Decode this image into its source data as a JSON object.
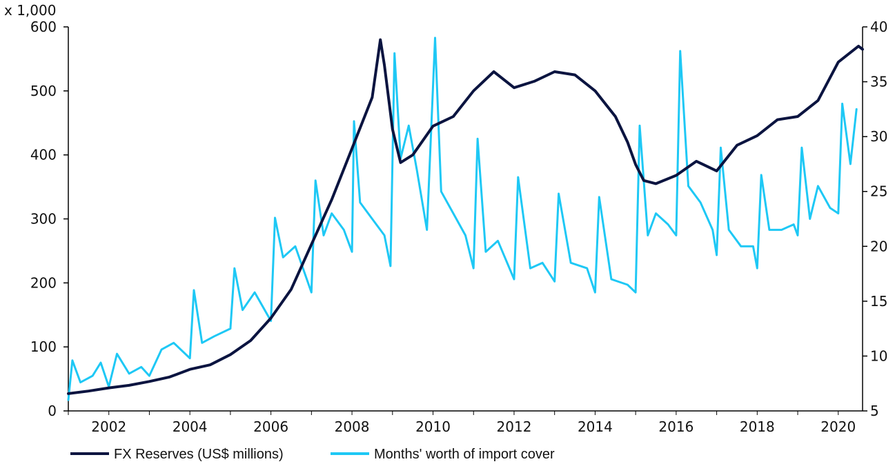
{
  "chart_data": {
    "type": "line",
    "multiplier_label": "x 1,000",
    "legend_placement": "bottom",
    "grid": false,
    "x_ticks": [
      "2002",
      "2004",
      "2006",
      "2008",
      "2010",
      "2012",
      "2014",
      "2016",
      "2018",
      "2020"
    ],
    "y_left": {
      "lim": [
        0,
        600
      ],
      "ticks": [
        "0",
        "100",
        "200",
        "300",
        "400",
        "500",
        "600"
      ]
    },
    "y_right": {
      "lim": [
        5,
        40
      ],
      "ticks": [
        "5",
        "10",
        "15",
        "20",
        "25",
        "30",
        "35",
        "40"
      ]
    },
    "series": [
      {
        "name": "FX Reserves (US$ millions)",
        "axis": "left",
        "color": "#0b1440",
        "points": [
          [
            2001.0,
            27
          ],
          [
            2001.5,
            31
          ],
          [
            2002.0,
            36
          ],
          [
            2002.5,
            40
          ],
          [
            2003.0,
            46
          ],
          [
            2003.5,
            53
          ],
          [
            2004.0,
            65
          ],
          [
            2004.5,
            72
          ],
          [
            2005.0,
            88
          ],
          [
            2005.5,
            110
          ],
          [
            2006.0,
            145
          ],
          [
            2006.5,
            190
          ],
          [
            2007.0,
            260
          ],
          [
            2007.5,
            330
          ],
          [
            2008.0,
            410
          ],
          [
            2008.5,
            490
          ],
          [
            2008.7,
            580
          ],
          [
            2008.8,
            540
          ],
          [
            2009.0,
            440
          ],
          [
            2009.2,
            388
          ],
          [
            2009.5,
            400
          ],
          [
            2010.0,
            445
          ],
          [
            2010.5,
            460
          ],
          [
            2011.0,
            500
          ],
          [
            2011.5,
            530
          ],
          [
            2012.0,
            505
          ],
          [
            2012.5,
            515
          ],
          [
            2013.0,
            530
          ],
          [
            2013.5,
            525
          ],
          [
            2014.0,
            500
          ],
          [
            2014.5,
            460
          ],
          [
            2014.8,
            420
          ],
          [
            2015.0,
            385
          ],
          [
            2015.2,
            360
          ],
          [
            2015.5,
            355
          ],
          [
            2016.0,
            368
          ],
          [
            2016.5,
            390
          ],
          [
            2017.0,
            375
          ],
          [
            2017.5,
            415
          ],
          [
            2018.0,
            430
          ],
          [
            2018.5,
            455
          ],
          [
            2019.0,
            460
          ],
          [
            2019.5,
            485
          ],
          [
            2020.0,
            545
          ],
          [
            2020.5,
            570
          ],
          [
            2020.6,
            565
          ]
        ]
      },
      {
        "name": "Months' worth of import cover",
        "axis": "right",
        "color": "#1ec8f5",
        "points": [
          [
            2001.0,
            6.0
          ],
          [
            2001.1,
            9.6
          ],
          [
            2001.3,
            7.6
          ],
          [
            2001.6,
            8.2
          ],
          [
            2001.8,
            9.4
          ],
          [
            2002.0,
            7.2
          ],
          [
            2002.2,
            10.2
          ],
          [
            2002.5,
            8.4
          ],
          [
            2002.8,
            9.0
          ],
          [
            2003.0,
            8.2
          ],
          [
            2003.3,
            10.6
          ],
          [
            2003.6,
            11.2
          ],
          [
            2004.0,
            9.8
          ],
          [
            2004.1,
            16.0
          ],
          [
            2004.3,
            11.2
          ],
          [
            2004.6,
            11.8
          ],
          [
            2005.0,
            12.5
          ],
          [
            2005.1,
            18.0
          ],
          [
            2005.3,
            14.2
          ],
          [
            2005.6,
            15.8
          ],
          [
            2006.0,
            13.2
          ],
          [
            2006.1,
            22.6
          ],
          [
            2006.3,
            19.0
          ],
          [
            2006.6,
            20.0
          ],
          [
            2007.0,
            15.8
          ],
          [
            2007.1,
            26.0
          ],
          [
            2007.3,
            21.0
          ],
          [
            2007.5,
            23.0
          ],
          [
            2007.8,
            21.5
          ],
          [
            2008.0,
            19.5
          ],
          [
            2008.05,
            31.4
          ],
          [
            2008.2,
            24.0
          ],
          [
            2008.5,
            22.5
          ],
          [
            2008.8,
            21.0
          ],
          [
            2008.95,
            18.2
          ],
          [
            2009.05,
            37.6
          ],
          [
            2009.2,
            28.0
          ],
          [
            2009.4,
            31.0
          ],
          [
            2009.6,
            27.0
          ],
          [
            2009.85,
            21.5
          ],
          [
            2010.05,
            39.0
          ],
          [
            2010.2,
            25.0
          ],
          [
            2010.5,
            23.0
          ],
          [
            2010.8,
            21.0
          ],
          [
            2011.0,
            18.0
          ],
          [
            2011.1,
            29.8
          ],
          [
            2011.3,
            19.5
          ],
          [
            2011.6,
            20.5
          ],
          [
            2012.0,
            17.0
          ],
          [
            2012.1,
            26.3
          ],
          [
            2012.4,
            18.0
          ],
          [
            2012.7,
            18.5
          ],
          [
            2013.0,
            16.8
          ],
          [
            2013.1,
            24.8
          ],
          [
            2013.4,
            18.5
          ],
          [
            2013.8,
            18.0
          ],
          [
            2014.0,
            15.8
          ],
          [
            2014.1,
            24.5
          ],
          [
            2014.4,
            17.0
          ],
          [
            2014.8,
            16.5
          ],
          [
            2015.0,
            15.8
          ],
          [
            2015.1,
            31.0
          ],
          [
            2015.3,
            21.0
          ],
          [
            2015.5,
            23.0
          ],
          [
            2015.8,
            22.0
          ],
          [
            2016.0,
            21.0
          ],
          [
            2016.1,
            37.8
          ],
          [
            2016.3,
            25.5
          ],
          [
            2016.6,
            24.0
          ],
          [
            2016.9,
            21.5
          ],
          [
            2017.0,
            19.2
          ],
          [
            2017.1,
            29.0
          ],
          [
            2017.3,
            21.5
          ],
          [
            2017.6,
            20.0
          ],
          [
            2017.9,
            20.0
          ],
          [
            2018.0,
            18.0
          ],
          [
            2018.1,
            26.5
          ],
          [
            2018.3,
            21.5
          ],
          [
            2018.6,
            21.5
          ],
          [
            2018.9,
            22.0
          ],
          [
            2019.0,
            21.0
          ],
          [
            2019.1,
            29.0
          ],
          [
            2019.3,
            22.5
          ],
          [
            2019.5,
            25.5
          ],
          [
            2019.8,
            23.5
          ],
          [
            2020.0,
            23.0
          ],
          [
            2020.1,
            33.0
          ],
          [
            2020.3,
            27.5
          ],
          [
            2020.45,
            32.5
          ]
        ]
      }
    ]
  }
}
